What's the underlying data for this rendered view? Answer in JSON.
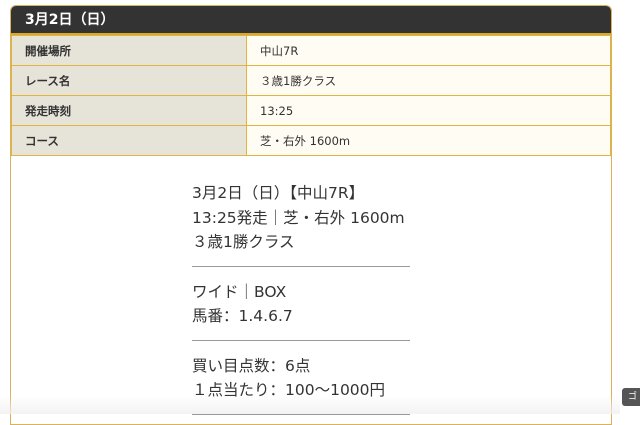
{
  "header": {
    "title": "3月2日（日）"
  },
  "info_rows": [
    {
      "label": "開催場所",
      "value": "中山7R"
    },
    {
      "label": "レース名",
      "value": "３歳1勝クラス"
    },
    {
      "label": "発走時刻",
      "value": "13:25"
    },
    {
      "label": "コース",
      "value": "芝・右外 1600m"
    }
  ],
  "detail": {
    "race_lines": [
      "3月2日（日）【中山7R】",
      "13:25発走｜芝・右外 1600m",
      "３歳1勝クラス"
    ],
    "bet_lines": [
      "ワイド｜BOX",
      "馬番：1.4.6.7"
    ],
    "cost_lines": [
      "買い目点数：6点",
      "１点当たり：100〜1000円"
    ]
  },
  "tooltip": {
    "label": "ゴ"
  }
}
